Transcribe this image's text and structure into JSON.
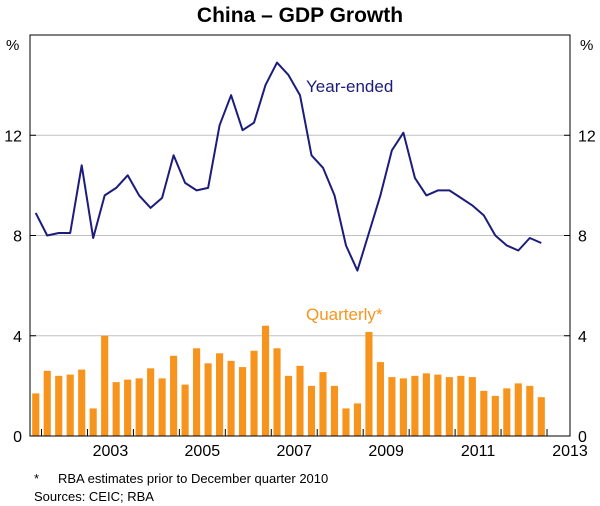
{
  "chart_data": {
    "type": "bar+line",
    "title": "China – GDP Growth",
    "left_unit": "%",
    "right_unit": "%",
    "ylim": [
      0,
      16
    ],
    "yticks": [
      "0",
      "4",
      "8",
      "12"
    ],
    "ytick_values": [
      0,
      4,
      8,
      12
    ],
    "xlim": [
      2001.75,
      2013.5
    ],
    "xticks": [
      "2003",
      "2005",
      "2007",
      "2009",
      "2011",
      "2013"
    ],
    "xtick_values": [
      2003,
      2005,
      2007,
      2009,
      2011,
      2013
    ],
    "grid": true,
    "colors": {
      "quarterly": "#f7941d",
      "year_ended": "#1c1c7c",
      "grid": "#c0c0c0",
      "frame": "#000000"
    },
    "series": [
      {
        "name": "Quarterly*",
        "type": "bar",
        "x": [
          2001.875,
          2002.125,
          2002.375,
          2002.625,
          2002.875,
          2003.125,
          2003.375,
          2003.625,
          2003.875,
          2004.125,
          2004.375,
          2004.625,
          2004.875,
          2005.125,
          2005.375,
          2005.625,
          2005.875,
          2006.125,
          2006.375,
          2006.625,
          2006.875,
          2007.125,
          2007.375,
          2007.625,
          2007.875,
          2008.125,
          2008.375,
          2008.625,
          2008.875,
          2009.125,
          2009.375,
          2009.625,
          2009.875,
          2010.125,
          2010.375,
          2010.625,
          2010.875,
          2011.125,
          2011.375,
          2011.625,
          2011.875,
          2012.125,
          2012.375,
          2012.625,
          2012.875,
          2013.125
        ],
        "values": [
          1.7,
          2.6,
          2.4,
          2.45,
          2.65,
          1.1,
          4.0,
          2.15,
          2.25,
          2.3,
          2.7,
          2.3,
          3.2,
          2.05,
          3.5,
          2.9,
          3.3,
          3.0,
          2.75,
          3.4,
          4.4,
          3.5,
          2.4,
          2.8,
          2.0,
          2.55,
          2.0,
          1.1,
          1.3,
          4.15,
          2.95,
          2.35,
          2.3,
          2.4,
          2.5,
          2.45,
          2.35,
          2.4,
          2.35,
          1.8,
          1.6,
          1.9,
          2.1,
          2.0,
          1.55,
          0
        ]
      },
      {
        "name": "Year-ended",
        "type": "line",
        "x": [
          2001.875,
          2002.125,
          2002.375,
          2002.625,
          2002.875,
          2003.125,
          2003.375,
          2003.625,
          2003.875,
          2004.125,
          2004.375,
          2004.625,
          2004.875,
          2005.125,
          2005.375,
          2005.625,
          2005.875,
          2006.125,
          2006.375,
          2006.625,
          2006.875,
          2007.125,
          2007.375,
          2007.625,
          2007.875,
          2008.125,
          2008.375,
          2008.625,
          2008.875,
          2009.125,
          2009.375,
          2009.625,
          2009.875,
          2010.125,
          2010.375,
          2010.625,
          2010.875,
          2011.125,
          2011.375,
          2011.625,
          2011.875,
          2012.125,
          2012.375,
          2012.625,
          2012.875
        ],
        "values": [
          8.9,
          8.0,
          8.1,
          8.1,
          10.8,
          7.9,
          9.6,
          9.9,
          10.4,
          9.6,
          9.1,
          9.5,
          11.2,
          10.1,
          9.8,
          9.9,
          12.4,
          13.6,
          12.2,
          12.5,
          14.0,
          14.9,
          14.4,
          13.6,
          11.2,
          10.7,
          9.6,
          7.6,
          6.6,
          8.1,
          9.6,
          11.4,
          12.1,
          10.3,
          9.6,
          9.8,
          9.8,
          9.5,
          9.2,
          8.8,
          8.0,
          7.6,
          7.4,
          7.9,
          7.7
        ]
      }
    ],
    "annotations": {
      "year_ended_label": "Year-ended",
      "quarterly_label": "Quarterly*"
    }
  },
  "footnotes": {
    "asterisk": "*",
    "note": "RBA estimates prior to December quarter 2010",
    "sources": "Sources: CEIC; RBA"
  }
}
